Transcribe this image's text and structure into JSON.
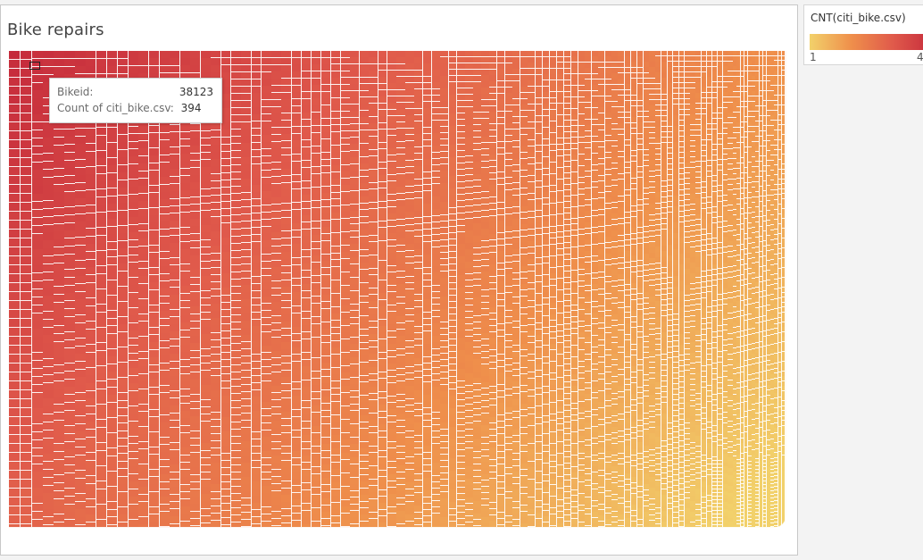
{
  "sheet": {
    "title": "Bike repairs"
  },
  "legend": {
    "title": "CNT(citi_bike.csv)",
    "min_label": "1",
    "max_label": "4",
    "colors": [
      "#f2d16b",
      "#ef8f4b",
      "#e05a4b",
      "#c52a3b"
    ]
  },
  "tooltip": {
    "rows": [
      {
        "label": "Bikeid:",
        "value": "38123"
      },
      {
        "label": "Count of citi_bike.csv:",
        "value": "394"
      }
    ]
  },
  "chart_data": {
    "type": "heatmap",
    "subtype": "treemap",
    "title": "Bike repairs",
    "dimension": "Bikeid",
    "measure": "Count of citi_bike.csv",
    "color_range": [
      1,
      4
    ],
    "highlighted_mark": {
      "Bikeid": "38123",
      "Count of citi_bike.csv": 394
    }
  }
}
